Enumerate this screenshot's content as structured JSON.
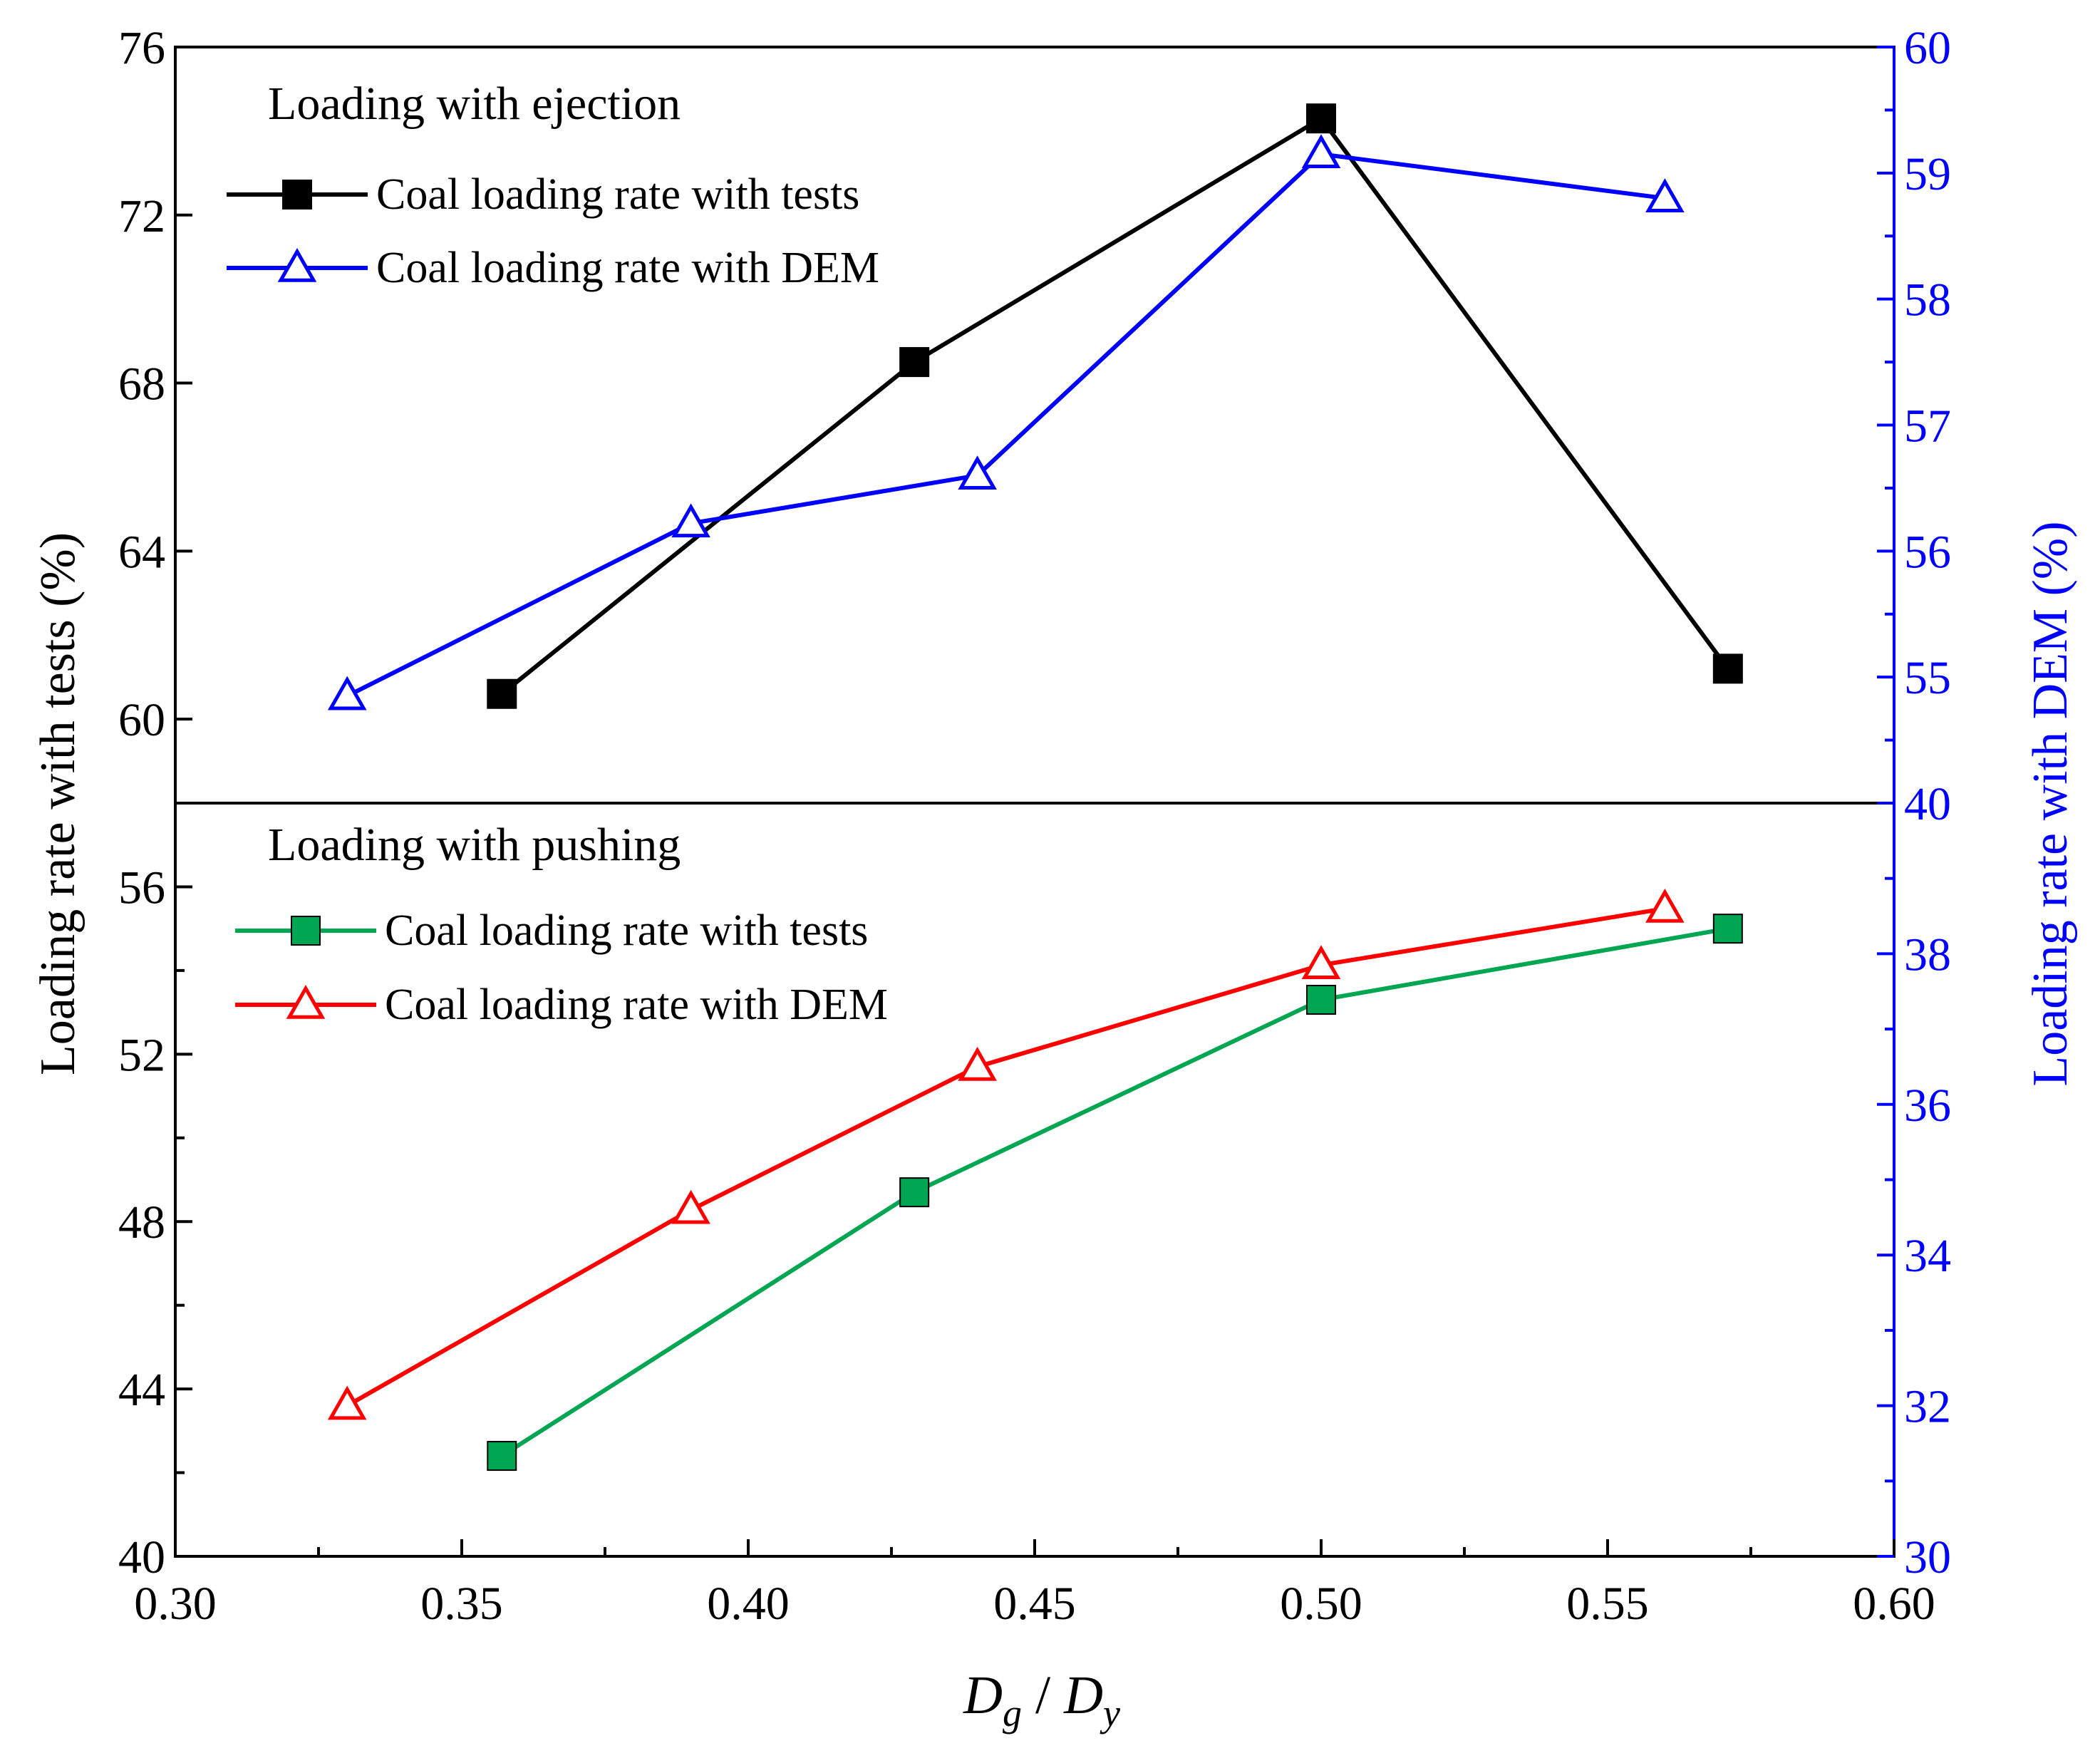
{
  "colors": {
    "black": "#000000",
    "blue": "#0000ff",
    "green": "#00a651",
    "red": "#ff0000"
  },
  "chart_data": [
    {
      "type": "line",
      "panel": "top",
      "title": "Loading with ejection",
      "xlim": [
        0.3,
        0.6
      ],
      "ylim_left": [
        58,
        76
      ],
      "ylim_right": [
        54,
        60
      ],
      "left_ticks": [
        "60",
        "64",
        "68",
        "72",
        "76"
      ],
      "right_ticks": [
        "55",
        "56",
        "57",
        "58",
        "59",
        "60"
      ],
      "legend_position": "top-left",
      "series": [
        {
          "name": "Coal loading rate with tests",
          "axis": "left",
          "color": "black",
          "marker": "filled-square",
          "x": [
            0.357,
            0.429,
            0.5,
            0.571
          ],
          "y": [
            60.6,
            68.5,
            74.3,
            61.2
          ]
        },
        {
          "name": "Coal loading rate with DEM",
          "axis": "right",
          "color": "blue",
          "marker": "open-triangle",
          "x": [
            0.33,
            0.39,
            0.44,
            0.5,
            0.56
          ],
          "y": [
            54.85,
            56.22,
            56.6,
            59.15,
            58.8
          ]
        }
      ]
    },
    {
      "type": "line",
      "panel": "bottom",
      "title": "Loading with pushing",
      "xlim": [
        0.3,
        0.6
      ],
      "ylim_left": [
        40,
        58
      ],
      "ylim_right": [
        30,
        40
      ],
      "left_ticks": [
        "40",
        "44",
        "48",
        "52",
        "56"
      ],
      "right_ticks": [
        "30",
        "32",
        "34",
        "36",
        "38",
        "40"
      ],
      "legend_position": "top-left",
      "series": [
        {
          "name": "Coal loading rate with tests",
          "axis": "left",
          "color": "green",
          "marker": "filled-square",
          "x": [
            0.357,
            0.429,
            0.5,
            0.571
          ],
          "y": [
            42.4,
            48.7,
            53.3,
            55.0
          ]
        },
        {
          "name": "Coal loading rate with DEM",
          "axis": "right",
          "color": "red",
          "marker": "open-triangle",
          "x": [
            0.33,
            0.39,
            0.44,
            0.5,
            0.56
          ],
          "y": [
            32.0,
            34.6,
            36.5,
            37.85,
            38.6
          ]
        }
      ]
    }
  ],
  "axes": {
    "x_ticks": [
      "0.30",
      "0.35",
      "0.40",
      "0.45",
      "0.50",
      "0.55",
      "0.60"
    ],
    "x_label": {
      "D": "D",
      "g": "g",
      "sep": " / ",
      "D2": "D",
      "y": "y"
    },
    "y_left_label": "Loading rate with tests (%)",
    "y_right_label": "Loading rate with DEM (%)"
  }
}
